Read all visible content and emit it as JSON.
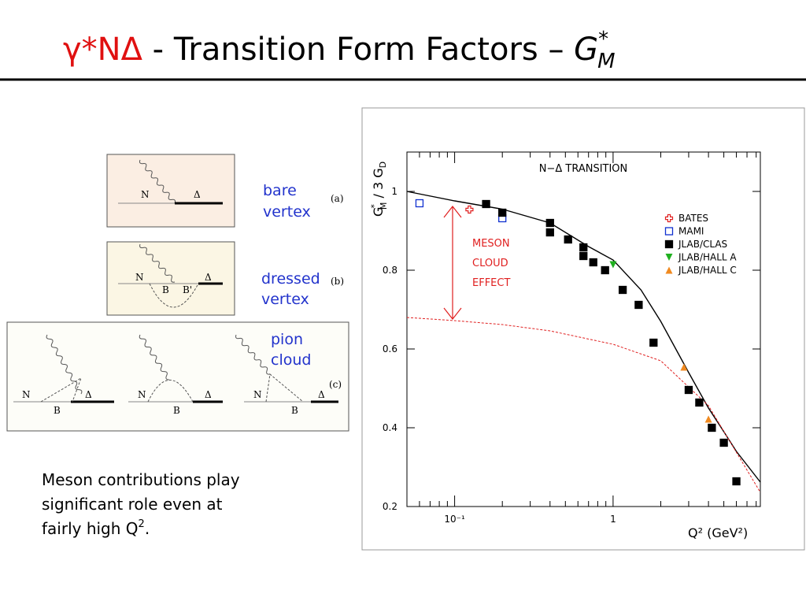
{
  "title": {
    "parts": [
      "γ*NΔ",
      " - Transition Form Factors – ",
      "G",
      "*",
      "M"
    ]
  },
  "panels": [
    {
      "tag": "(a)",
      "caption": [
        "bare",
        "vertex"
      ],
      "labels": [
        "N",
        "Δ"
      ]
    },
    {
      "tag": "(b)",
      "caption": [
        "dressed",
        "vertex"
      ],
      "labels": [
        "N",
        "Δ",
        "B",
        "B'"
      ]
    },
    {
      "tag": "(c)",
      "caption": [
        "pion",
        "cloud"
      ],
      "labels": [
        "N",
        "Δ",
        "B",
        "N",
        "Δ",
        "B",
        "N",
        "Δ",
        "B"
      ]
    }
  ],
  "caption": [
    "Meson contributions play",
    "significant role even at",
    "fairly high Q",
    "2",
    "."
  ],
  "chart_data": {
    "type": "scatter",
    "annotation": "N−Δ TRANSITION",
    "meson_label": [
      "MESON",
      "CLOUD",
      "EFFECT"
    ],
    "ylabel": [
      "G",
      "*",
      "M",
      " / 3 G",
      "D"
    ],
    "xlabel": "Q² (GeV²)",
    "xlog": true,
    "xlim": [
      0.05,
      8.5
    ],
    "xticks": [
      {
        "value": 0.1,
        "label": "10⁻¹"
      },
      1
    ],
    "xminor": [
      0.06,
      0.07,
      0.08,
      0.09,
      0.2,
      0.3,
      0.4,
      0.5,
      0.6,
      0.7,
      0.8,
      0.9,
      2,
      3,
      4,
      5,
      6,
      7,
      8
    ],
    "ylim": [
      0.2,
      1.1
    ],
    "yticks": [
      0.2,
      0.4,
      0.6,
      0.8,
      1
    ],
    "legend": "upper right",
    "series": [
      {
        "name": "BATES",
        "color": "#e02020",
        "marker": "plus-open",
        "x": [
          0.124
        ],
        "values": [
          0.954
        ]
      },
      {
        "name": "MAMI",
        "color": "#1030d0",
        "marker": "square-open",
        "x": [
          0.06,
          0.2
        ],
        "values": [
          0.97,
          0.932
        ]
      },
      {
        "name": "JLAB/CLAS",
        "color": "#000000",
        "marker": "square",
        "x": [
          0.158,
          0.2,
          0.4,
          0.4,
          0.52,
          0.65,
          0.65,
          0.75,
          0.89,
          1.15,
          1.45,
          1.8,
          3.0,
          3.5,
          4.2,
          5.0,
          6.0
        ],
        "values": [
          0.968,
          0.946,
          0.92,
          0.896,
          0.878,
          0.858,
          0.836,
          0.82,
          0.8,
          0.75,
          0.712,
          0.616,
          0.496,
          0.464,
          0.4,
          0.362,
          0.264
        ]
      },
      {
        "name": "JLAB/HALL A",
        "color": "#20b020",
        "marker": "triangle-down",
        "x": [
          1.0
        ],
        "values": [
          0.814
        ]
      },
      {
        "name": "JLAB/HALL C",
        "color": "#f08a20",
        "marker": "triangle-up",
        "x": [
          2.8,
          4.0
        ],
        "values": [
          0.554,
          0.422
        ]
      }
    ],
    "lines": [
      {
        "color": "#000000",
        "dash": false,
        "x": [
          0.05,
          0.1,
          0.2,
          0.4,
          0.7,
          1,
          1.5,
          2,
          3,
          4,
          5,
          6,
          8.5
        ],
        "values": [
          1.0,
          0.976,
          0.955,
          0.92,
          0.86,
          0.826,
          0.75,
          0.67,
          0.54,
          0.45,
          0.39,
          0.34,
          0.262
        ]
      },
      {
        "color": "#e02020",
        "dash": true,
        "x": [
          0.05,
          0.1,
          0.2,
          0.4,
          1,
          2,
          4,
          8.5
        ],
        "values": [
          0.68,
          0.672,
          0.662,
          0.646,
          0.612,
          0.57,
          0.456,
          0.236
        ]
      }
    ]
  }
}
